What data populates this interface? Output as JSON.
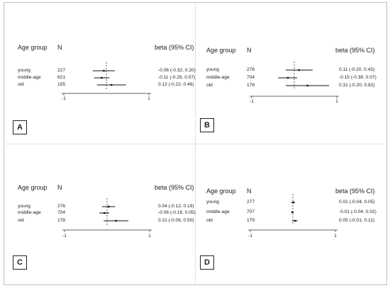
{
  "header": {
    "age_group": "Age group",
    "n": "N",
    "beta": "beta (95% CI)"
  },
  "axis": {
    "ticks": [
      "-1",
      "1"
    ]
  },
  "chart_data": [
    {
      "type": "forest",
      "panel_label": "A",
      "categories": [
        "young",
        "middle-age",
        "old"
      ],
      "n": [
        "227",
        "621",
        "155"
      ],
      "ci_text": [
        "-0.06 (-0.32, 0.20)",
        "-0.11 (-0.29, 0.07)",
        "0.12 (-0.22, 0.46)"
      ],
      "beta": [
        -0.06,
        -0.11,
        0.12
      ],
      "lower": [
        -0.32,
        -0.29,
        -0.22
      ],
      "upper": [
        0.2,
        0.07,
        0.46
      ],
      "reference_line": 0,
      "xticks": [
        -1,
        1
      ]
    },
    {
      "type": "forest",
      "panel_label": "B",
      "categories": [
        "young",
        "middle-age",
        "old"
      ],
      "n": [
        "276",
        "704",
        "178"
      ],
      "ci_text": [
        "0.11 (-0.20, 0.43)",
        "-0.15 (-0.38, 0.07)",
        "0.31 (-0.20, 0.82)"
      ],
      "beta": [
        0.11,
        -0.15,
        0.31
      ],
      "lower": [
        -0.2,
        -0.38,
        -0.2
      ],
      "upper": [
        0.43,
        0.07,
        0.82
      ],
      "reference_line": 0,
      "xticks": [
        -1,
        1
      ]
    },
    {
      "type": "forest",
      "panel_label": "C",
      "categories": [
        "young",
        "middle-age",
        "old"
      ],
      "n": [
        "276",
        "704",
        "178"
      ],
      "ci_text": [
        "0.04 (-0.12, 0.19)",
        "-0.06 (-0.18, 0.05)",
        "0.21 (-0.08, 0.50)"
      ],
      "beta": [
        0.04,
        -0.06,
        0.21
      ],
      "lower": [
        -0.12,
        -0.18,
        -0.08
      ],
      "upper": [
        0.19,
        0.05,
        0.5
      ],
      "reference_line": 0,
      "xticks": [
        -1,
        1
      ]
    },
    {
      "type": "forest",
      "panel_label": "D",
      "categories": [
        "young",
        "middle-age",
        "old"
      ],
      "n": [
        "277",
        "707",
        "179"
      ],
      "ci_text": [
        "0.01 (-0.04, 0.05)",
        "-0.01 (-0.04, 0.02)",
        "0.05 (-0.01, 0.11)"
      ],
      "beta": [
        0.01,
        -0.01,
        0.05
      ],
      "lower": [
        -0.04,
        -0.04,
        -0.01
      ],
      "upper": [
        0.05,
        0.02,
        0.11
      ],
      "reference_line": 0,
      "xticks": [
        -1,
        1
      ]
    }
  ]
}
